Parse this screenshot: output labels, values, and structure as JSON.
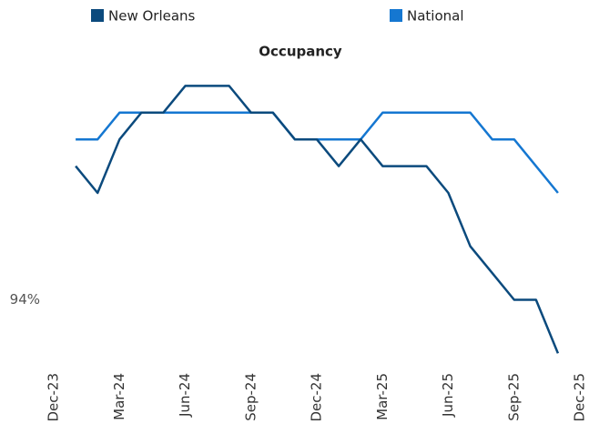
{
  "chart_data": {
    "type": "line",
    "title": "Occupancy",
    "x": [
      "2024-01",
      "2024-02",
      "2024-03",
      "2024-04",
      "2024-05",
      "2024-06",
      "2024-07",
      "2024-08",
      "2024-09",
      "2024-10",
      "2024-11",
      "2024-12",
      "2025-01",
      "2025-02",
      "2025-03",
      "2025-04",
      "2025-05",
      "2025-06",
      "2025-07",
      "2025-08",
      "2025-09",
      "2025-10",
      "2025-11"
    ],
    "series": [
      {
        "name": "New Orleans",
        "color": "#0b4a7d",
        "values": [
          94.5,
          94.4,
          94.6,
          94.7,
          94.7,
          94.8,
          94.8,
          94.8,
          94.7,
          94.7,
          94.6,
          94.6,
          94.5,
          94.6,
          94.5,
          94.5,
          94.5,
          94.4,
          94.2,
          94.1,
          94.0,
          94.0,
          93.8
        ]
      },
      {
        "name": "National",
        "color": "#1577d1",
        "values": [
          94.6,
          94.6,
          94.7,
          94.7,
          94.7,
          94.7,
          94.7,
          94.7,
          94.7,
          94.7,
          94.6,
          94.6,
          94.6,
          94.6,
          94.7,
          94.7,
          94.7,
          94.7,
          94.7,
          94.6,
          94.6,
          94.5,
          94.4
        ]
      }
    ],
    "xlim": [
      "2023-12",
      "2025-12"
    ],
    "xticks": [
      {
        "value": "2023-12",
        "label": "Dec-23"
      },
      {
        "value": "2024-03",
        "label": "Mar-24"
      },
      {
        "value": "2024-06",
        "label": "Jun-24"
      },
      {
        "value": "2024-09",
        "label": "Sep-24"
      },
      {
        "value": "2024-12",
        "label": "Dec-24"
      },
      {
        "value": "2025-03",
        "label": "Mar-25"
      },
      {
        "value": "2025-06",
        "label": "Jun-25"
      },
      {
        "value": "2025-09",
        "label": "Sep-25"
      },
      {
        "value": "2025-12",
        "label": "Dec-25"
      }
    ],
    "ylim": [
      93.75,
      94.9
    ],
    "yticks": [
      {
        "value": 94,
        "label": "94%"
      }
    ],
    "legend": "top"
  }
}
